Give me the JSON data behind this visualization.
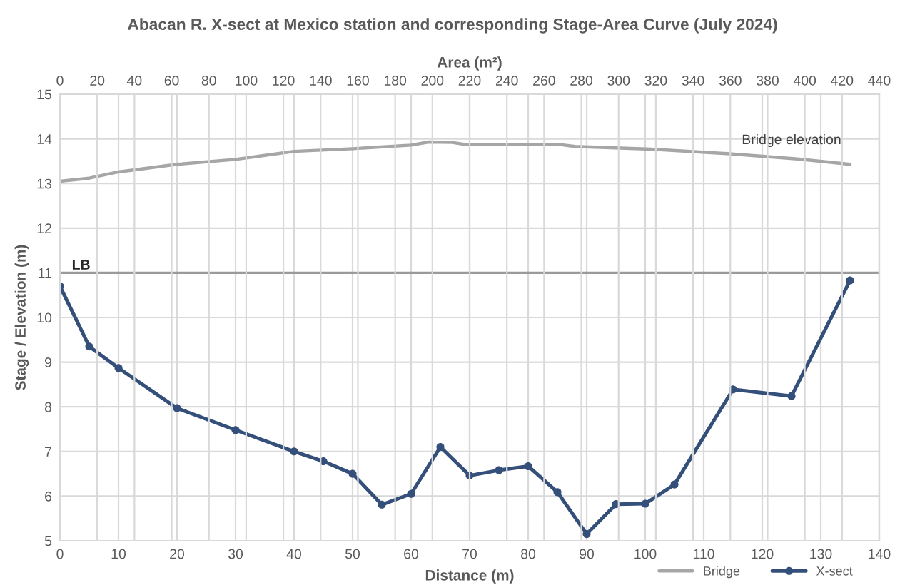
{
  "chart_data": {
    "type": "line",
    "title": "Abacan R. X-sect at Mexico station and corresponding Stage-Area Curve (July 2024)",
    "xlabel": "Distance (m)",
    "ylabel": "Stage / Elevation (m)",
    "x2label": "Area (m²)",
    "series": [
      {
        "name": "Bridge",
        "color": "#a6a6a6",
        "marker": "none",
        "x": [
          0,
          5,
          10,
          20,
          30,
          35,
          40,
          50,
          60,
          63,
          67,
          69,
          85,
          88,
          101,
          114,
          126,
          135
        ],
        "values": [
          13.05,
          13.12,
          13.26,
          13.43,
          13.54,
          13.63,
          13.72,
          13.78,
          13.86,
          13.93,
          13.92,
          13.88,
          13.88,
          13.83,
          13.77,
          13.67,
          13.55,
          13.43
        ]
      },
      {
        "name": "X-sect",
        "color": "#34507a",
        "marker": "circle",
        "x": [
          0,
          5,
          10,
          20,
          30,
          40,
          45,
          50,
          55,
          60,
          65,
          70,
          75,
          80,
          85,
          90,
          95,
          100,
          105,
          115,
          125,
          135
        ],
        "values": [
          10.7,
          9.35,
          8.87,
          7.97,
          7.48,
          7.0,
          6.78,
          6.5,
          5.81,
          6.05,
          7.1,
          6.46,
          6.58,
          6.67,
          6.09,
          5.15,
          5.82,
          5.83,
          6.26,
          8.39,
          8.24,
          10.83
        ]
      }
    ],
    "xlim": [
      0,
      140
    ],
    "xticks": [
      0,
      10,
      20,
      30,
      40,
      50,
      60,
      70,
      80,
      90,
      100,
      110,
      120,
      130,
      140
    ],
    "x2lim": [
      0,
      440
    ],
    "x2ticks": [
      0,
      20,
      40,
      60,
      80,
      100,
      120,
      140,
      160,
      180,
      200,
      220,
      240,
      260,
      280,
      300,
      320,
      340,
      360,
      380,
      400,
      420,
      440
    ],
    "ylim": [
      5,
      15
    ],
    "yticks": [
      5,
      6,
      7,
      8,
      9,
      10,
      11,
      12,
      13,
      14,
      15
    ],
    "ref_lines": [
      {
        "axis": "y",
        "value": 11,
        "color": "#9a9a9a"
      }
    ],
    "annotations": [
      {
        "text": "LB",
        "x": 0,
        "y": 10.7
      },
      {
        "text": "Bridge elevation",
        "x": 125,
        "y": 13.55
      }
    ],
    "grid": true,
    "legend": "bottom right"
  }
}
